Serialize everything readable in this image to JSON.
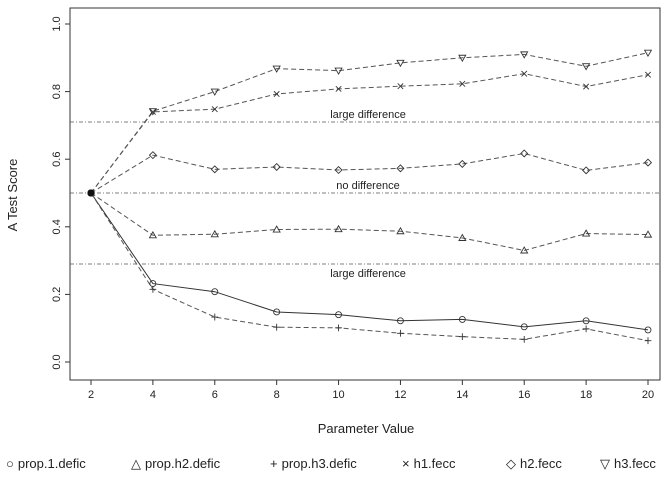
{
  "chart_data": {
    "type": "line",
    "title": "",
    "xlabel": "Parameter Value",
    "ylabel": "A Test Score",
    "x": [
      2,
      4,
      6,
      8,
      10,
      12,
      14,
      16,
      18,
      20
    ],
    "xlim": [
      2,
      20
    ],
    "ylim": [
      0,
      1
    ],
    "x_ticks": [
      "2",
      "4",
      "6",
      "8",
      "10",
      "12",
      "14",
      "16",
      "18",
      "20"
    ],
    "y_ticks": [
      "0.0",
      "0.2",
      "0.4",
      "0.6",
      "0.8",
      "1.0"
    ],
    "grid": false,
    "legend_position": "bottom",
    "reference_lines": [
      {
        "y": 0.71,
        "label": "large difference"
      },
      {
        "y": 0.5,
        "label": "no difference"
      },
      {
        "y": 0.29,
        "label": "large difference"
      }
    ],
    "series": [
      {
        "name": "prop.1.defic",
        "marker": "circle",
        "line": "solid",
        "values": [
          0.5,
          0.232,
          0.208,
          0.148,
          0.14,
          0.122,
          0.126,
          0.104,
          0.122,
          0.095
        ]
      },
      {
        "name": "prop.h2.defic",
        "marker": "triangle-up",
        "line": "dashed",
        "values": [
          0.5,
          0.375,
          0.378,
          0.392,
          0.393,
          0.387,
          0.367,
          0.33,
          0.38,
          0.377
        ]
      },
      {
        "name": "prop.h3.defic",
        "marker": "plus",
        "line": "dashed",
        "values": [
          0.5,
          0.215,
          0.133,
          0.103,
          0.101,
          0.085,
          0.075,
          0.067,
          0.098,
          0.063
        ]
      },
      {
        "name": "h1.fecc",
        "marker": "cross",
        "line": "dashed",
        "values": [
          0.5,
          0.74,
          0.748,
          0.793,
          0.808,
          0.816,
          0.823,
          0.853,
          0.815,
          0.85
        ]
      },
      {
        "name": "h2.fecc",
        "marker": "diamond",
        "line": "dashed",
        "values": [
          0.5,
          0.612,
          0.57,
          0.577,
          0.568,
          0.573,
          0.586,
          0.617,
          0.567,
          0.59
        ]
      },
      {
        "name": "h3.fecc",
        "marker": "triangle-down",
        "line": "dashed",
        "values": [
          0.5,
          0.742,
          0.8,
          0.868,
          0.862,
          0.885,
          0.9,
          0.91,
          0.875,
          0.915
        ]
      }
    ],
    "legend": [
      {
        "symbol": "○",
        "label": "prop.1.defic"
      },
      {
        "symbol": "△",
        "label": "prop.h2.defic"
      },
      {
        "symbol": "+",
        "label": "prop.h3.defic"
      },
      {
        "symbol": "×",
        "label": "h1.fecc"
      },
      {
        "symbol": "◇",
        "label": "h2.fecc"
      },
      {
        "symbol": "▽",
        "label": "h3.fecc"
      }
    ]
  }
}
